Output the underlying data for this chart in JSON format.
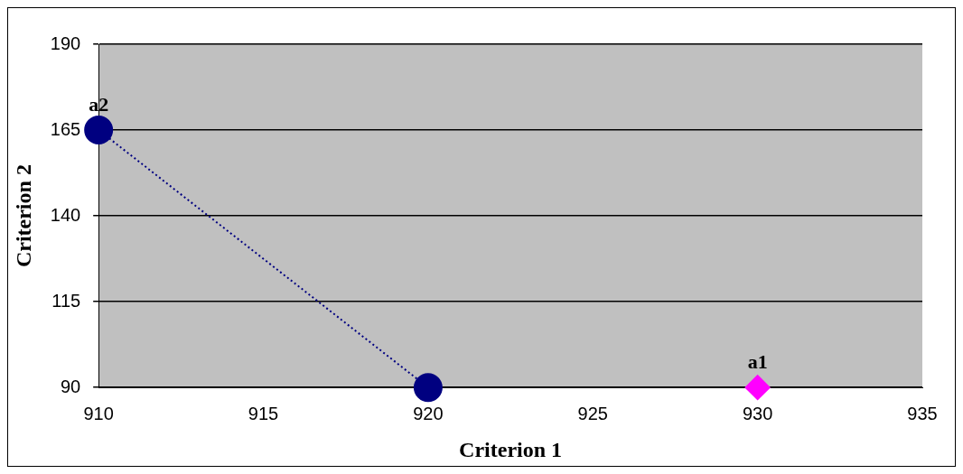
{
  "chart_data": {
    "type": "scatter",
    "xlabel": "Criterion 1",
    "ylabel": "Criterion 2",
    "xlim": [
      910,
      935
    ],
    "xticks": [
      910,
      915,
      920,
      925,
      930,
      935
    ],
    "ylim": [
      90,
      190
    ],
    "yticks": [
      90,
      115,
      140,
      165,
      190
    ],
    "grid": "y",
    "series": [
      {
        "type": "line",
        "color": "#000080",
        "x": [
          910,
          920
        ],
        "values": [
          165,
          90
        ],
        "marker": "circle",
        "line_style": "dotted"
      },
      {
        "type": "scatter",
        "color": "#ff00ff",
        "x": [
          930
        ],
        "values": [
          90
        ],
        "marker": "diamond"
      }
    ],
    "annotations": [
      {
        "text": "a2",
        "x": 910,
        "y": 165
      },
      {
        "text": "a1",
        "x": 930,
        "y": 90
      }
    ]
  }
}
